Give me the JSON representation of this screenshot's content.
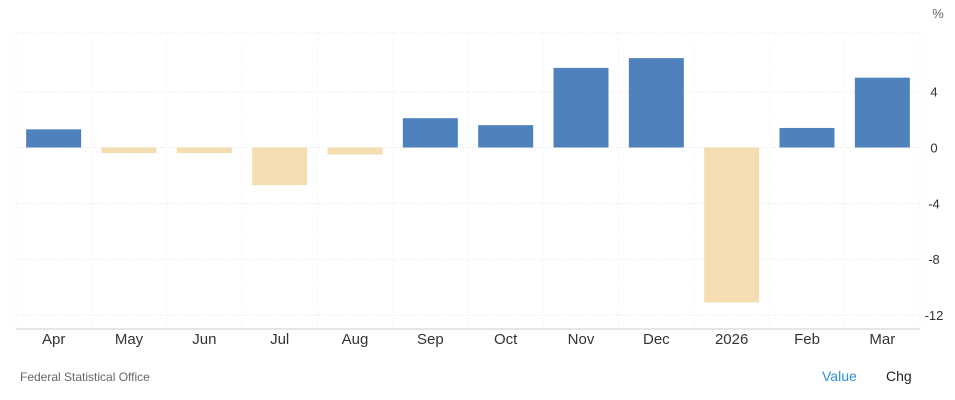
{
  "chart_data": {
    "type": "bar",
    "categories": [
      "Apr",
      "May",
      "Jun",
      "Jul",
      "Aug",
      "Sep",
      "Oct",
      "Nov",
      "Dec",
      "2026",
      "Feb",
      "Mar"
    ],
    "values": [
      1.3,
      -0.4,
      -0.4,
      -2.7,
      -0.5,
      2.1,
      1.6,
      5.7,
      6.4,
      -11.1,
      1.4,
      5.0
    ],
    "unit_label": "%",
    "ylim": [
      -13,
      8.2
    ],
    "yticks": [
      4,
      0,
      -4,
      -8,
      -12
    ],
    "grid": true,
    "colors": {
      "positive": "#4f81bd",
      "negative": "#f5ddb2"
    }
  },
  "footer": {
    "source": "Federal Statistical Office",
    "tabs": [
      "Value",
      "Chg"
    ]
  }
}
